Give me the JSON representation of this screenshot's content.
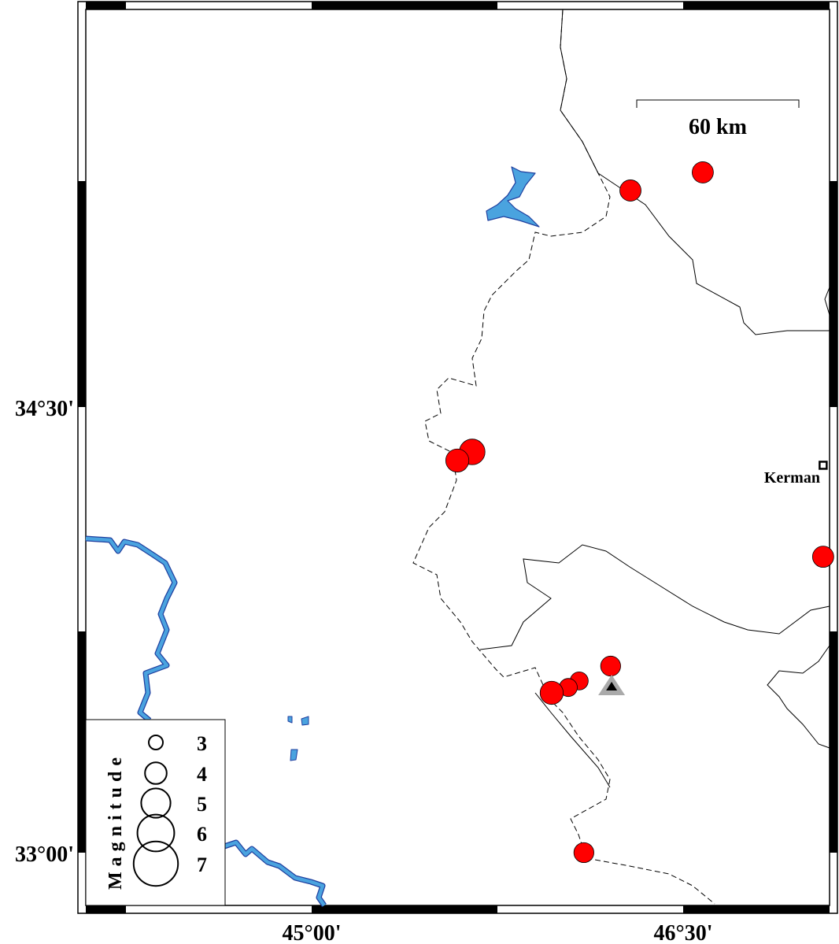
{
  "map": {
    "lon_ticks": [
      {
        "value": 45.0,
        "label": "45°00'"
      },
      {
        "value": 46.5,
        "label": "46°30'"
      }
    ],
    "lat_ticks": [
      {
        "value": 34.5,
        "label": "34°30'"
      },
      {
        "value": 33.0,
        "label": "33°00'"
      }
    ],
    "scale_bar": {
      "label": "60 km"
    },
    "city": {
      "name": "Kerman",
      "lon": 47.065,
      "lat": 34.304
    },
    "station": {
      "lon": 46.211,
      "lat": 33.559,
      "symbol": "triangle"
    },
    "colors": {
      "event": "#ff0000",
      "water": "#4aa3df",
      "water_edge": "#1f3f9f",
      "station_halo": "#aaaaaa"
    },
    "events": [
      {
        "lon": 46.287,
        "lat": 35.229,
        "mag": 3.5
      },
      {
        "lon": 46.579,
        "lat": 35.29,
        "mag": 3.5
      },
      {
        "lon": 45.648,
        "lat": 34.349,
        "mag": 4.2
      },
      {
        "lon": 45.588,
        "lat": 34.32,
        "mag": 3.8
      },
      {
        "lon": 47.065,
        "lat": 33.996,
        "mag": 3.5
      },
      {
        "lon": 46.207,
        "lat": 33.628,
        "mag": 3.3
      },
      {
        "lon": 46.08,
        "lat": 33.578,
        "mag": 3.0
      },
      {
        "lon": 46.036,
        "lat": 33.556,
        "mag": 3.0
      },
      {
        "lon": 45.969,
        "lat": 33.538,
        "mag": 3.8
      },
      {
        "lon": 46.099,
        "lat": 33.0,
        "mag": 3.3
      }
    ]
  },
  "legend": {
    "title": "Magnitude",
    "items": [
      {
        "mag": 3,
        "label": "3"
      },
      {
        "mag": 4,
        "label": "4"
      },
      {
        "mag": 5,
        "label": "5"
      },
      {
        "mag": 6,
        "label": "6"
      },
      {
        "mag": 7,
        "label": "7"
      }
    ]
  }
}
